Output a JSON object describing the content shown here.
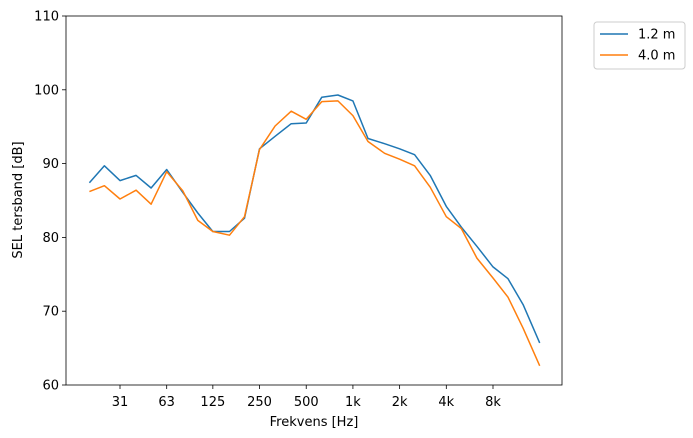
{
  "chart_data": {
    "type": "line",
    "title": "",
    "xlabel": "Frekvens [Hz]",
    "ylabel": "SEL tersband [dB]",
    "ylim": [
      60,
      110
    ],
    "x_scale": "log",
    "x_ticks": [
      {
        "value": 31.5,
        "label": "31"
      },
      {
        "value": 63,
        "label": "63"
      },
      {
        "value": 125,
        "label": "125"
      },
      {
        "value": 250,
        "label": "250"
      },
      {
        "value": 500,
        "label": "500"
      },
      {
        "value": 1000,
        "label": "1k"
      },
      {
        "value": 2000,
        "label": "2k"
      },
      {
        "value": 4000,
        "label": "4k"
      },
      {
        "value": 8000,
        "label": "8k"
      }
    ],
    "y_ticks": [
      60,
      70,
      80,
      90,
      100,
      110
    ],
    "x": [
      20,
      25,
      31.5,
      40,
      50,
      63,
      80,
      100,
      125,
      160,
      200,
      250,
      315,
      400,
      500,
      630,
      800,
      1000,
      1250,
      1600,
      2000,
      2500,
      3150,
      4000,
      5000,
      6300,
      8000,
      10000,
      12500,
      16000
    ],
    "series": [
      {
        "name": "1.2 m",
        "color": "#1f77b4",
        "values": [
          87.4,
          89.7,
          87.7,
          88.4,
          86.7,
          89.2,
          86.1,
          83.3,
          80.8,
          80.8,
          82.6,
          92.0,
          93.7,
          95.4,
          95.5,
          99.0,
          99.3,
          98.5,
          93.4,
          92.7,
          92.0,
          91.2,
          88.4,
          84.2,
          81.4,
          78.8,
          76.0,
          74.4,
          70.9,
          65.7
        ]
      },
      {
        "name": "4.0 m",
        "color": "#ff7f0e",
        "values": [
          86.2,
          87.0,
          85.2,
          86.4,
          84.5,
          88.9,
          86.3,
          82.3,
          80.8,
          80.3,
          82.8,
          91.9,
          95.1,
          97.1,
          96.0,
          98.4,
          98.5,
          96.5,
          93.0,
          91.4,
          90.6,
          89.7,
          86.8,
          82.8,
          81.2,
          77.2,
          74.5,
          71.9,
          67.7,
          62.6
        ]
      }
    ],
    "legend_position": "outside-top-right",
    "grid": false
  }
}
